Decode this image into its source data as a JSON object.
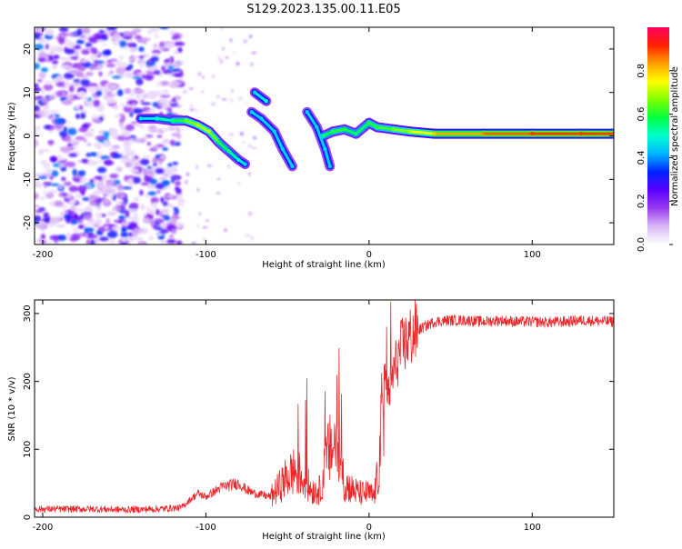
{
  "figure": {
    "title": "S129.2023.135.00.11.E05"
  },
  "chart_data": [
    {
      "type": "heatmap",
      "xlabel": "Height of straight line (km)",
      "ylabel": "Frequency (Hz)",
      "xlim": [
        -205,
        150
      ],
      "ylim": [
        -25,
        25
      ],
      "xticks": [
        -200,
        -100,
        0,
        100
      ],
      "yticks": [
        -20,
        -10,
        0,
        10,
        20
      ],
      "colorbar": {
        "label": "Normalized spectral amplitude",
        "ticks": [
          "0.0",
          "0.2",
          "0.4",
          "0.6",
          "0.8"
        ],
        "range": [
          0,
          1
        ],
        "colormap": [
          "#ffffff",
          "#d9b8f4",
          "#9a3cf0",
          "#5a00ff",
          "#0022ff",
          "#00b4ff",
          "#00ffd0",
          "#00ff40",
          "#7fff00",
          "#ffff00",
          "#ffa000",
          "#ff2000",
          "#ff0060"
        ]
      },
      "ridge": [
        [
          -140,
          4,
          0.45
        ],
        [
          -130,
          4,
          0.5
        ],
        [
          -120,
          3.5,
          0.55
        ],
        [
          -112,
          3.5,
          0.65
        ],
        [
          -105,
          2.5,
          0.7
        ],
        [
          -98,
          1,
          0.7
        ],
        [
          -92,
          -1.5,
          0.6
        ],
        [
          -86,
          -3.5,
          0.55
        ],
        [
          -80,
          -5.5,
          0.5
        ],
        [
          -76,
          -6.5,
          0.45
        ],
        [
          -70,
          10,
          0.45
        ],
        [
          -63,
          8,
          0.5
        ],
        [
          -72,
          5.5,
          0.45
        ],
        [
          -66,
          4,
          0.45
        ],
        [
          -58,
          1,
          0.45
        ],
        [
          -53,
          -3,
          0.45
        ],
        [
          -47,
          -7,
          0.45
        ],
        [
          -38,
          5.5,
          0.45
        ],
        [
          -32,
          2,
          0.45
        ],
        [
          -27,
          -3,
          0.45
        ],
        [
          -24,
          -7,
          0.45
        ],
        [
          -28,
          0,
          0.55
        ],
        [
          -22,
          1,
          0.6
        ],
        [
          -15,
          1.5,
          0.6
        ],
        [
          -8,
          0.5,
          0.55
        ],
        [
          0,
          3,
          0.6
        ],
        [
          5,
          2,
          0.6
        ],
        [
          15,
          1.5,
          0.65
        ],
        [
          25,
          1,
          0.7
        ],
        [
          40,
          0.5,
          0.8
        ],
        [
          70,
          0.5,
          0.85
        ],
        [
          100,
          0.5,
          0.9
        ],
        [
          130,
          0.5,
          0.9
        ],
        [
          150,
          0.5,
          0.9
        ]
      ]
    },
    {
      "type": "line",
      "xlabel": "Height of straight line (km)",
      "ylabel": "SNR (10 * v/v)",
      "xlim": [
        -205,
        150
      ],
      "ylim": [
        0,
        320
      ],
      "xticks": [
        -200,
        -100,
        0,
        100
      ],
      "yticks": [
        0,
        100,
        200,
        300
      ],
      "line_color": "#e8282b",
      "series": [
        {
          "x": [
            -205,
            -190,
            -170,
            -150,
            -130,
            -115,
            -110,
            -105,
            -100,
            -90,
            -80,
            -75,
            -70,
            -60,
            -50,
            -45,
            -40,
            -35,
            -30,
            -25,
            -20,
            -15,
            -10,
            -5,
            0,
            3,
            6,
            8,
            10,
            12,
            15,
            20,
            25,
            30,
            35,
            40,
            50,
            60,
            70,
            80,
            90,
            100,
            110,
            120,
            130,
            140,
            150
          ],
          "values": [
            12,
            12,
            12,
            11,
            12,
            14,
            25,
            35,
            30,
            45,
            50,
            40,
            35,
            30,
            60,
            70,
            55,
            40,
            40,
            95,
            110,
            50,
            40,
            35,
            35,
            30,
            70,
            150,
            200,
            180,
            215,
            250,
            265,
            275,
            282,
            288,
            290,
            290,
            288,
            290,
            288,
            288,
            287,
            288,
            290,
            289,
            288
          ]
        }
      ]
    }
  ]
}
